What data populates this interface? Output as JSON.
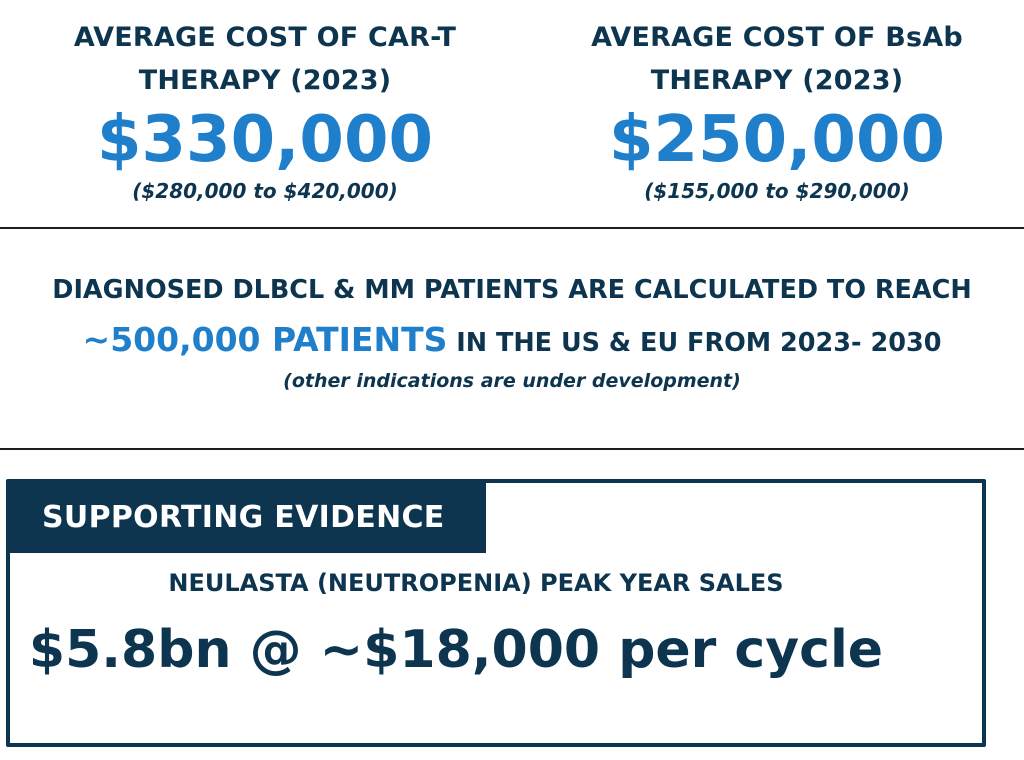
{
  "left_cost": {
    "title_line1": "AVERAGE COST OF CAR-T",
    "title_line2": "THERAPY (2023)",
    "value": "$330,000",
    "range": "($280,000 to $420,000)"
  },
  "right_cost": {
    "title_line1": "AVERAGE COST OF BsAb",
    "title_line2": "THERAPY (2023)",
    "value": "$250,000",
    "range": "($155,000 to $290,000)"
  },
  "patients": {
    "line1": "DIAGNOSED DLBCL & MM PATIENTS ARE CALCULATED TO REACH",
    "highlight": "~500,000 PATIENTS",
    "line2_rest": " IN THE US & EU FROM 2023- 2030",
    "note": "(other indications are under development)"
  },
  "evidence": {
    "tab_label": "SUPPORTING EVIDENCE",
    "subtitle": "NEULASTA (NEUTROPENIA) PEAK YEAR SALES",
    "headline": "$5.8bn @ ~$18,000 per cycle"
  },
  "colors": {
    "navy": "#0d3550",
    "accent_blue": "#1f7fcb"
  }
}
